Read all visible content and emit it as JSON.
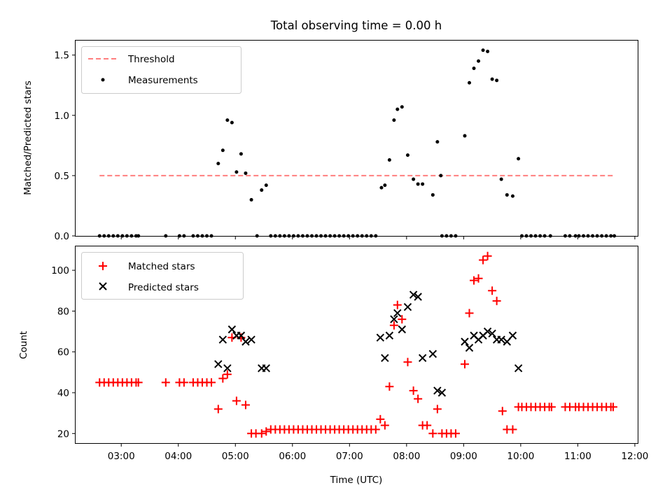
{
  "chart_data": {
    "type": "scatter",
    "title": "Total observing time = 0.00 h",
    "xlabel": "Time (UTC)",
    "x_ticks": [
      "03:00",
      "04:00",
      "05:00",
      "06:00",
      "07:00",
      "08:00",
      "09:00",
      "10:00",
      "11:00",
      "12:00"
    ],
    "xlim_hours": [
      2.2,
      12.05
    ],
    "panels": [
      {
        "name": "ratio",
        "ylabel": "Matched/Predicted stars",
        "ylim": [
          0,
          1.62
        ],
        "y_ticks": [
          0.0,
          0.5,
          1.0,
          1.5
        ],
        "y_tick_labels": [
          "0.0",
          "0.5",
          "1.0",
          "1.5"
        ],
        "legend": {
          "position": "top-left",
          "entries": [
            "Threshold",
            "Measurements"
          ]
        },
        "threshold": {
          "name": "Threshold",
          "value": 0.5,
          "x_range": [
            2.62,
            11.62
          ],
          "color": "#ff7f7f",
          "style": "dashed"
        },
        "series": [
          {
            "name": "Measurements",
            "color": "#000000",
            "marker": "dot",
            "x": [
              2.62,
              2.7,
              2.78,
              2.86,
              2.94,
              3.02,
              3.1,
              3.18,
              3.26,
              3.3,
              3.78,
              4.02,
              4.1,
              4.26,
              4.34,
              4.42,
              4.5,
              4.58,
              4.7,
              4.78,
              4.86,
              4.94,
              5.02,
              5.1,
              5.18,
              5.28,
              5.38,
              5.46,
              5.54,
              5.62,
              5.7,
              5.78,
              5.86,
              5.94,
              6.02,
              6.1,
              6.18,
              6.26,
              6.34,
              6.42,
              6.5,
              6.58,
              6.66,
              6.74,
              6.82,
              6.9,
              6.98,
              7.06,
              7.14,
              7.22,
              7.3,
              7.38,
              7.46,
              7.56,
              7.62,
              7.7,
              7.78,
              7.84,
              7.92,
              8.02,
              8.12,
              8.2,
              8.28,
              8.46,
              8.54,
              8.6,
              8.62,
              8.7,
              8.78,
              8.86,
              9.02,
              9.1,
              9.18,
              9.26,
              9.34,
              9.42,
              9.5,
              9.58,
              9.66,
              9.76,
              9.86,
              9.96,
              10.02,
              10.1,
              10.18,
              10.26,
              10.34,
              10.42,
              10.52,
              10.78,
              10.86,
              10.96,
              11.02,
              11.1,
              11.18,
              11.26,
              11.34,
              11.42,
              11.5,
              11.58,
              11.64
            ],
            "y": [
              0,
              0,
              0,
              0,
              0,
              0,
              0,
              0,
              0,
              0,
              0,
              0,
              0,
              0,
              0,
              0,
              0,
              0,
              0.6,
              0.71,
              0.96,
              0.94,
              0.53,
              0.68,
              0.52,
              0.3,
              0,
              0.38,
              0.42,
              0,
              0,
              0,
              0,
              0,
              0,
              0,
              0,
              0,
              0,
              0,
              0,
              0,
              0,
              0,
              0,
              0,
              0,
              0,
              0,
              0,
              0,
              0,
              0,
              0.4,
              0.42,
              0.63,
              0.96,
              1.05,
              1.07,
              0.67,
              0.47,
              0.43,
              0.43,
              0.34,
              0.78,
              0.5,
              0,
              0,
              0,
              0,
              0.83,
              1.27,
              1.39,
              1.45,
              1.54,
              1.53,
              1.3,
              1.29,
              0.47,
              0.34,
              0.33,
              0.64,
              0,
              0,
              0,
              0,
              0,
              0,
              0,
              0,
              0,
              0,
              0,
              0,
              0,
              0,
              0,
              0,
              0,
              0,
              0
            ]
          }
        ]
      },
      {
        "name": "counts",
        "ylabel": "Count",
        "ylim": [
          15.3,
          111.7
        ],
        "y_ticks": [
          20,
          40,
          60,
          80,
          100
        ],
        "y_tick_labels": [
          "20",
          "40",
          "60",
          "80",
          "100"
        ],
        "legend": {
          "position": "top-left",
          "entries": [
            "Matched stars",
            "Predicted stars"
          ]
        },
        "series": [
          {
            "name": "Matched stars",
            "color": "#ff0000",
            "marker": "plus",
            "x": [
              2.62,
              2.7,
              2.78,
              2.86,
              2.94,
              3.02,
              3.1,
              3.18,
              3.26,
              3.3,
              3.78,
              4.02,
              4.1,
              4.26,
              4.34,
              4.42,
              4.5,
              4.58,
              4.7,
              4.78,
              4.86,
              4.94,
              5.02,
              5.1,
              5.18,
              5.28,
              5.36,
              5.46,
              5.54,
              5.62,
              5.7,
              5.78,
              5.86,
              5.94,
              6.02,
              6.1,
              6.18,
              6.26,
              6.34,
              6.42,
              6.5,
              6.58,
              6.66,
              6.74,
              6.82,
              6.9,
              6.98,
              7.06,
              7.14,
              7.22,
              7.3,
              7.38,
              7.46,
              7.54,
              7.62,
              7.7,
              7.78,
              7.84,
              7.92,
              8.02,
              8.12,
              8.2,
              8.28,
              8.36,
              8.46,
              8.54,
              8.62,
              8.7,
              8.78,
              8.86,
              9.02,
              9.1,
              9.18,
              9.26,
              9.34,
              9.42,
              9.5,
              9.58,
              9.68,
              9.76,
              9.86,
              9.96,
              10.02,
              10.1,
              10.18,
              10.26,
              10.34,
              10.42,
              10.5,
              10.54,
              10.78,
              10.86,
              10.96,
              11.02,
              11.1,
              11.18,
              11.26,
              11.34,
              11.42,
              11.5,
              11.58,
              11.62
            ],
            "y": [
              45,
              45,
              45,
              45,
              45,
              45,
              45,
              45,
              45,
              45,
              45,
              45,
              45,
              45,
              45,
              45,
              45,
              45,
              32,
              47,
              49,
              67,
              36,
              67,
              34,
              20,
              20,
              20,
              21,
              22,
              22,
              22,
              22,
              22,
              22,
              22,
              22,
              22,
              22,
              22,
              22,
              22,
              22,
              22,
              22,
              22,
              22,
              22,
              22,
              22,
              22,
              22,
              22,
              27,
              24,
              43,
              73,
              83,
              76,
              55,
              41,
              37,
              24,
              24,
              20,
              32,
              20,
              20,
              20,
              20,
              54,
              79,
              95,
              96,
              105,
              107,
              90,
              85,
              31,
              22,
              22,
              33,
              33,
              33,
              33,
              33,
              33,
              33,
              33,
              33,
              33,
              33,
              33,
              33,
              33,
              33,
              33,
              33,
              33,
              33,
              33,
              33
            ]
          },
          {
            "name": "Predicted stars",
            "color": "#000000",
            "marker": "x",
            "x": [
              4.7,
              4.78,
              4.86,
              4.94,
              5.02,
              5.1,
              5.18,
              5.28,
              5.46,
              5.54,
              7.54,
              7.62,
              7.7,
              7.78,
              7.84,
              7.92,
              8.02,
              8.12,
              8.2,
              8.28,
              8.46,
              8.54,
              8.62,
              9.02,
              9.1,
              9.18,
              9.26,
              9.34,
              9.42,
              9.5,
              9.58,
              9.66,
              9.76,
              9.86,
              9.96
            ],
            "y": [
              54,
              66,
              52,
              71,
              68,
              68,
              65,
              66,
              52,
              52,
              67,
              57,
              68,
              76,
              79,
              71,
              82,
              88,
              87,
              57,
              59,
              41,
              40,
              65,
              62,
              68,
              66,
              68,
              70,
              69,
              66,
              66,
              65,
              68,
              52
            ]
          }
        ]
      }
    ]
  }
}
